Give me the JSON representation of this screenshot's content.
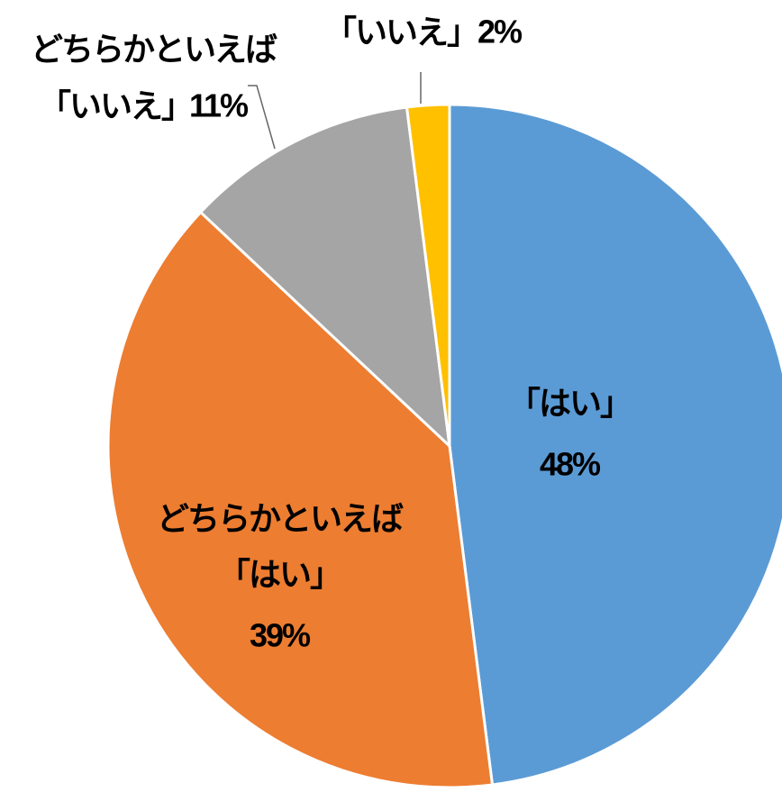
{
  "chart_data": {
    "type": "pie",
    "categories": [
      "「はい」",
      "どちらかといえば「はい」",
      "どちらかといえば「いいえ」",
      "「いいえ」"
    ],
    "values": [
      48,
      39,
      11,
      2
    ],
    "value_labels": [
      "48%",
      "39%",
      "11%",
      "2%"
    ],
    "colors": [
      "#5b9bd5",
      "#ed7d31",
      "#a5a5a5",
      "#ffc000"
    ]
  }
}
